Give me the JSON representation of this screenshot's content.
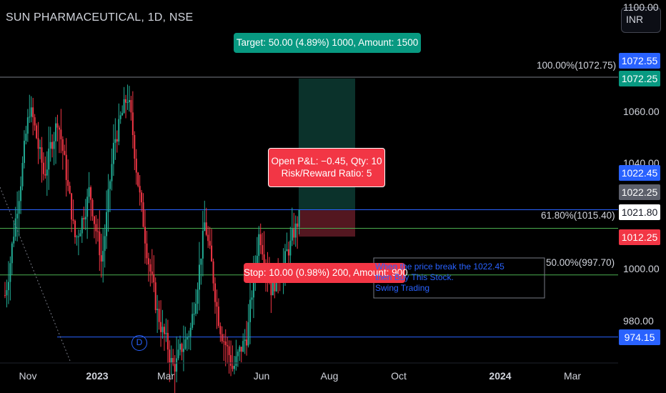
{
  "header": {
    "symbol_title": "SUN PHARMACEUTICAL, 1D, NSE",
    "currency": "INR"
  },
  "colors": {
    "up": "#22ab94",
    "down": "#f23645",
    "blue_line": "#2962ff",
    "green_line": "#4caf50",
    "target_zone": "#0d3b33",
    "stop_zone": "#5c1a24"
  },
  "tags": {
    "target": "Target: 50.00 (4.89%) 1000, Amount: 1500",
    "pnl_line1": "Open P&L: −0.45, Qty: 10",
    "pnl_line2": "Risk/Reward Ratio: 5",
    "stop": "Stop: 10.00 (0.98%) 200, Amount: 900"
  },
  "note": {
    "line1": "When the price break the 1022.45",
    "line2": "then Buy This Stock.",
    "line3": "Swing Trading"
  },
  "fib_levels": [
    {
      "label": "100.00%(1072.75)",
      "price": 1072.75,
      "color": "#787b86"
    },
    {
      "label": "61.80%(1015.40)",
      "price": 1015.4,
      "color": "#4caf50"
    },
    {
      "label": "50.00%(997.70)",
      "price": 997.7,
      "color": "#4caf50"
    }
  ],
  "price_axis": {
    "ticks": [
      "1100.00",
      "1060.00",
      "1040.00",
      "1000.00",
      "980.00"
    ],
    "badges": [
      {
        "label": "1072.55",
        "bg": "#2962ff",
        "fg": "#ffffff"
      },
      {
        "label": "1072.25",
        "bg": "#089981",
        "fg": "#ffffff"
      },
      {
        "label": "1022.45",
        "bg": "#2962ff",
        "fg": "#ffffff"
      },
      {
        "label": "1022.25",
        "bg": "#5d606b",
        "fg": "#ffffff"
      },
      {
        "label": "1021.80",
        "bg": "#ffffff",
        "fg": "#131722"
      },
      {
        "label": "1012.25",
        "bg": "#f23645",
        "fg": "#ffffff"
      },
      {
        "label": "974.15",
        "bg": "#2962ff",
        "fg": "#ffffff"
      }
    ]
  },
  "time_axis": {
    "ticks": [
      {
        "label": "Nov",
        "bold": false
      },
      {
        "label": "2023",
        "bold": true
      },
      {
        "label": "Mar",
        "bold": false
      },
      {
        "label": "Jun",
        "bold": false
      },
      {
        "label": "Aug",
        "bold": false
      },
      {
        "label": "Oct",
        "bold": false
      },
      {
        "label": "2024",
        "bold": true
      },
      {
        "label": "Mar",
        "bold": false
      }
    ]
  },
  "dividend_marker": "D",
  "chart_data": {
    "type": "candlestick",
    "title": "SUN PHARMACEUTICAL, 1D, NSE",
    "ylim": [
      962,
      1108
    ],
    "x_ticks": [
      "Nov",
      "2023",
      "Mar",
      "Jun",
      "Aug",
      "Oct",
      "2024",
      "Mar"
    ],
    "trade": {
      "entry": 1022.25,
      "target": 1072.25,
      "stop": 1012.25,
      "target_pct": 4.89,
      "stop_pct": 0.98,
      "qty": 10,
      "open_pnl": -0.45,
      "risk_reward": 5
    },
    "horizontal_lines": [
      1072.55,
      1022.45,
      974.15
    ],
    "last_price": 1021.8,
    "waypoints": [
      [
        0,
        990
      ],
      [
        14,
        1062
      ],
      [
        22,
        1035
      ],
      [
        30,
        1058
      ],
      [
        40,
        1010
      ],
      [
        48,
        1030
      ],
      [
        55,
        1002
      ],
      [
        62,
        1048
      ],
      [
        70,
        1066
      ],
      [
        78,
        1020
      ],
      [
        86,
        985
      ],
      [
        96,
        962
      ],
      [
        106,
        978
      ],
      [
        114,
        1018
      ],
      [
        122,
        980
      ],
      [
        130,
        962
      ],
      [
        138,
        975
      ],
      [
        145,
        1015
      ],
      [
        152,
        992
      ],
      [
        160,
        1004
      ],
      [
        168,
        1020
      ]
    ],
    "candle_count": 169,
    "bar_spacing": 2.45,
    "y_ref_prices": [
      1072.75,
      1000.0,
      980.0
    ],
    "y_ref_labels": [
      "100.00%(1072.75)",
      "1000.00",
      "980.00"
    ]
  }
}
